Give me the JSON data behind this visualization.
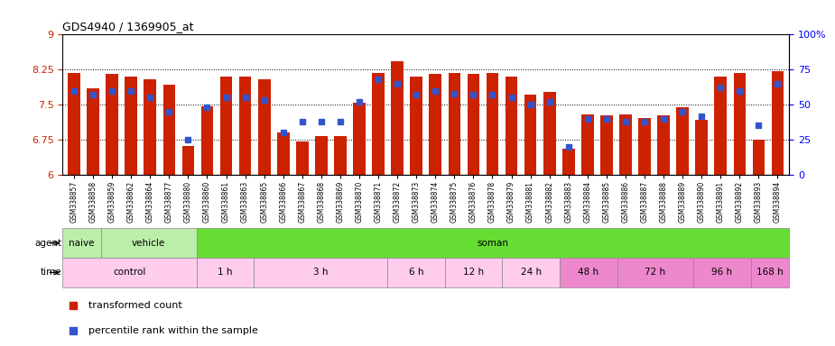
{
  "title": "GDS4940 / 1369905_at",
  "samples": [
    "GSM338857",
    "GSM338858",
    "GSM338859",
    "GSM338862",
    "GSM338864",
    "GSM338877",
    "GSM338880",
    "GSM338860",
    "GSM338861",
    "GSM338863",
    "GSM338865",
    "GSM338866",
    "GSM338867",
    "GSM338868",
    "GSM338869",
    "GSM338870",
    "GSM338871",
    "GSM338872",
    "GSM338873",
    "GSM338874",
    "GSM338875",
    "GSM338876",
    "GSM338878",
    "GSM338879",
    "GSM338881",
    "GSM338882",
    "GSM338883",
    "GSM338884",
    "GSM338885",
    "GSM338886",
    "GSM338887",
    "GSM338888",
    "GSM338889",
    "GSM338890",
    "GSM338891",
    "GSM338892",
    "GSM338893",
    "GSM338894"
  ],
  "bar_values": [
    8.18,
    7.85,
    8.15,
    8.1,
    8.05,
    7.92,
    6.62,
    7.47,
    8.1,
    8.1,
    8.05,
    6.9,
    6.72,
    6.83,
    6.83,
    7.55,
    8.18,
    8.42,
    8.1,
    8.15,
    8.18,
    8.15,
    8.18,
    8.1,
    7.72,
    7.78,
    6.55,
    7.3,
    7.28,
    7.3,
    7.22,
    7.28,
    7.44,
    7.18,
    8.1,
    8.18,
    6.75,
    8.22
  ],
  "percentile_values": [
    60,
    57,
    60,
    60,
    55,
    45,
    25,
    48,
    55,
    55,
    53,
    30,
    38,
    38,
    38,
    52,
    68,
    65,
    57,
    60,
    58,
    57,
    57,
    55,
    50,
    52,
    20,
    40,
    40,
    38,
    38,
    40,
    45,
    42,
    62,
    60,
    35,
    65
  ],
  "ylim_left": [
    6,
    9
  ],
  "yticks_left": [
    6,
    6.75,
    7.5,
    8.25,
    9
  ],
  "ylim_right": [
    0,
    100
  ],
  "yticks_right": [
    0,
    25,
    50,
    75,
    100
  ],
  "yticklabels_right": [
    "0",
    "25",
    "50",
    "75",
    "100%"
  ],
  "bar_color": "#cc2200",
  "dot_color": "#3355cc",
  "hline_values": [
    6.75,
    7.5,
    8.25
  ],
  "agent_specs": [
    {
      "label": "naive",
      "start": 0,
      "end": 2,
      "color": "#bbeeaa"
    },
    {
      "label": "vehicle",
      "start": 2,
      "end": 7,
      "color": "#bbeeaa"
    },
    {
      "label": "soman",
      "start": 7,
      "end": 38,
      "color": "#66dd33"
    }
  ],
  "time_groups": [
    {
      "label": "control",
      "start": 0,
      "end": 7,
      "color": "#ffccee"
    },
    {
      "label": "1 h",
      "start": 7,
      "end": 10,
      "color": "#ffccee"
    },
    {
      "label": "3 h",
      "start": 10,
      "end": 17,
      "color": "#ffccee"
    },
    {
      "label": "6 h",
      "start": 17,
      "end": 20,
      "color": "#ffccee"
    },
    {
      "label": "12 h",
      "start": 20,
      "end": 23,
      "color": "#ffccee"
    },
    {
      "label": "24 h",
      "start": 23,
      "end": 26,
      "color": "#ffccee"
    },
    {
      "label": "48 h",
      "start": 26,
      "end": 29,
      "color": "#ee88cc"
    },
    {
      "label": "72 h",
      "start": 29,
      "end": 33,
      "color": "#ee88cc"
    },
    {
      "label": "96 h",
      "start": 33,
      "end": 36,
      "color": "#ee88cc"
    },
    {
      "label": "168 h",
      "start": 36,
      "end": 38,
      "color": "#ee88cc"
    }
  ]
}
